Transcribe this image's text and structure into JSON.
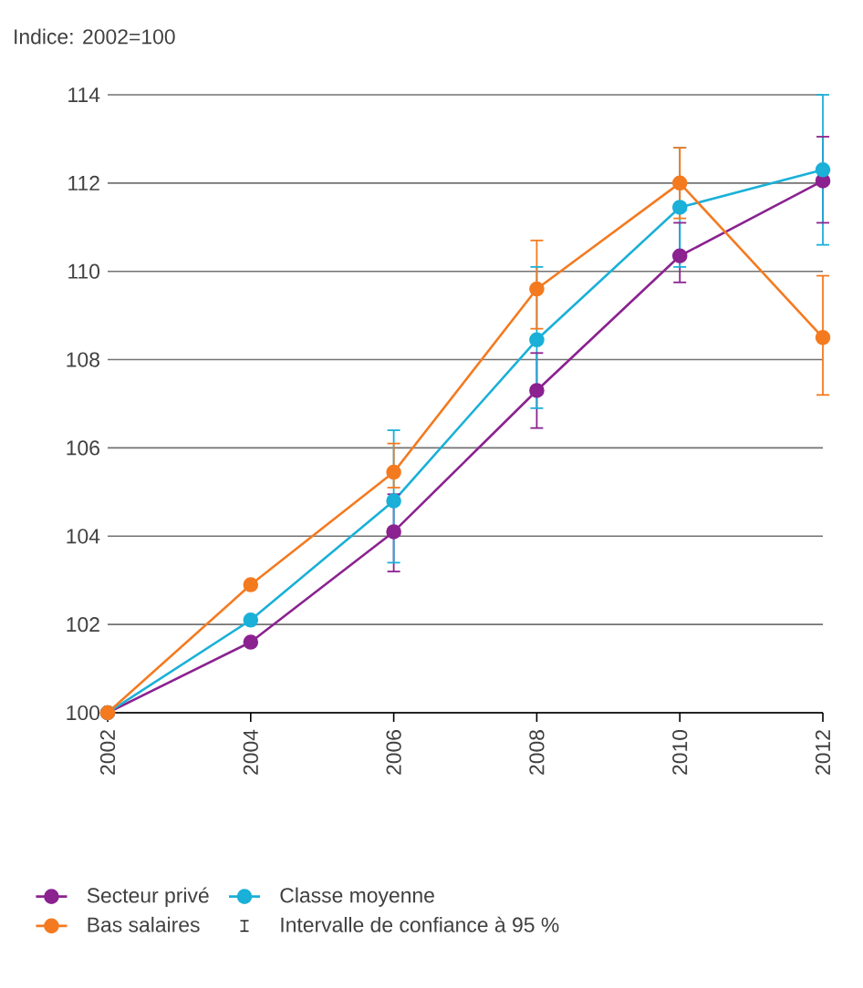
{
  "chart_data": {
    "type": "line",
    "title": "Indice: 2002=100",
    "x": [
      2002,
      2004,
      2006,
      2008,
      2010,
      2012
    ],
    "series": [
      {
        "name": "Secteur privé",
        "color": "#8b2290",
        "values": [
          100,
          101.6,
          104.1,
          107.3,
          110.35,
          112.05
        ],
        "errors": [
          null,
          null,
          [
            103.2,
            104.95
          ],
          [
            106.45,
            108.15
          ],
          [
            109.75,
            111.1
          ],
          [
            111.1,
            113.05
          ]
        ]
      },
      {
        "name": "Classe moyenne",
        "color": "#1ab0d8",
        "values": [
          100,
          102.1,
          104.8,
          108.45,
          111.45,
          112.3
        ],
        "errors": [
          null,
          null,
          [
            103.4,
            106.4
          ],
          [
            106.9,
            110.1
          ],
          [
            110.1,
            112.8
          ],
          [
            110.6,
            114
          ]
        ]
      },
      {
        "name": "Bas salaires",
        "color": "#f47a20",
        "values": [
          100,
          102.9,
          105.45,
          109.6,
          112.0,
          108.5
        ],
        "errors": [
          null,
          null,
          [
            105.1,
            106.1
          ],
          [
            108.7,
            110.7
          ],
          [
            111.2,
            112.8
          ],
          [
            107.2,
            109.9
          ]
        ]
      }
    ],
    "annotations": [
      "Intervalle de confiance à 95 %"
    ],
    "xlim": [
      2002,
      2012
    ],
    "xticks": [
      2002,
      2004,
      2006,
      2008,
      2010,
      2012
    ],
    "ylim": [
      100,
      114
    ],
    "yticks": [
      100,
      102,
      104,
      106,
      108,
      110,
      112,
      114
    ],
    "grid": "y",
    "legend": "bottom",
    "marker": "circle",
    "line_style": "solid"
  }
}
